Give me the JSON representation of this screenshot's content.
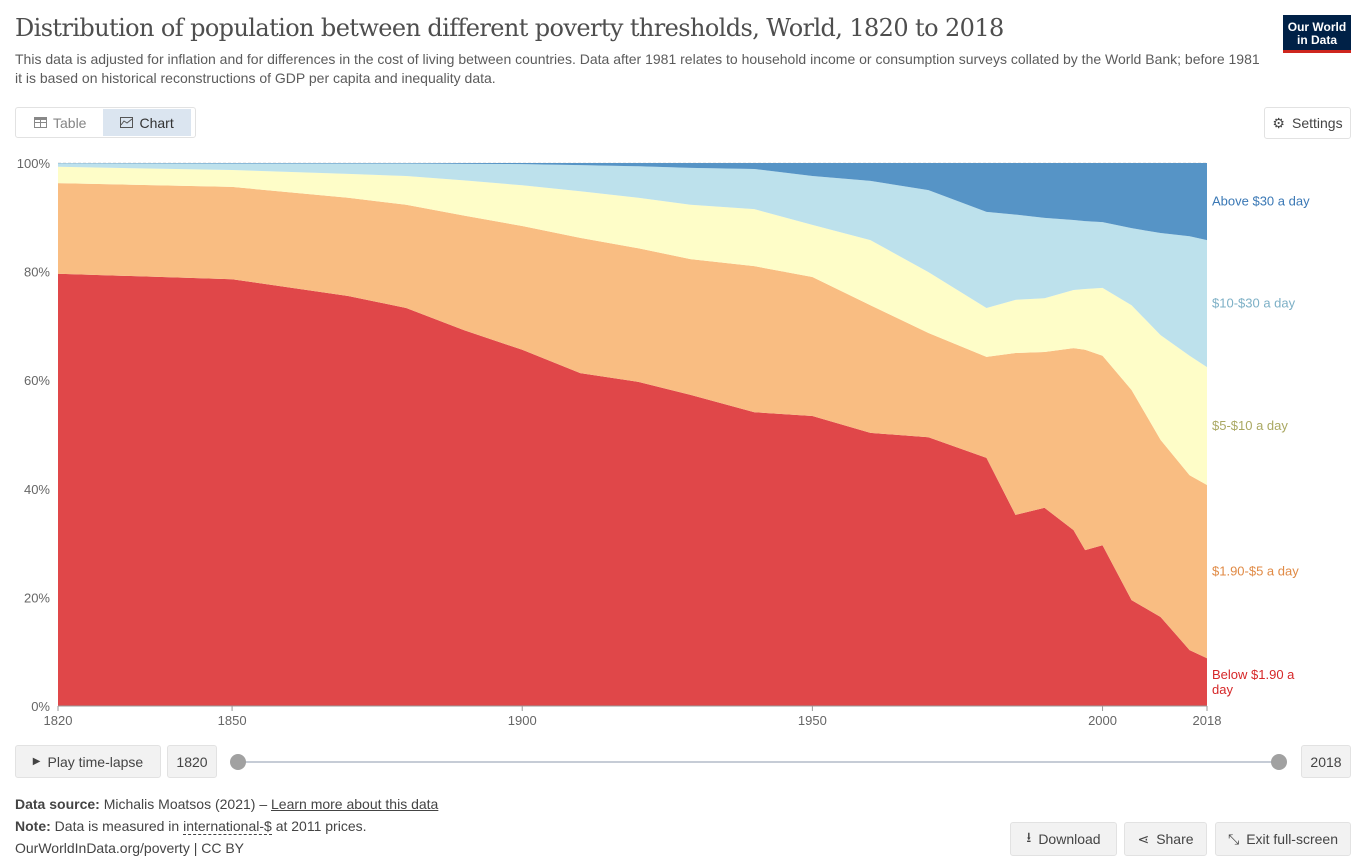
{
  "header": {
    "title": "Distribution of population between different poverty thresholds, World, 1820 to 2018",
    "subtitle": "This data is adjusted for inflation and for differences in the cost of living between countries. Data after 1981 relates to household income or consumption surveys collated by the World Bank; before 1981 it is based on historical reconstructions of GDP per capita and inequality data.",
    "logo_line1": "Our World",
    "logo_line2": "in Data"
  },
  "tabs": [
    {
      "label": "Table",
      "icon": "table-icon"
    },
    {
      "label": "Chart",
      "icon": "chart-icon",
      "active": true
    }
  ],
  "settings_label": "Settings",
  "chart_data": {
    "type": "area",
    "stacked": true,
    "title": "Distribution of population between different poverty thresholds, World, 1820 to 2018",
    "xlabel": "",
    "ylabel": "",
    "xlim": [
      1820,
      2018
    ],
    "ylim": [
      0,
      100
    ],
    "y_ticks": [
      "0%",
      "20%",
      "40%",
      "60%",
      "80%",
      "100%"
    ],
    "x_ticks": [
      "1820",
      "1850",
      "1900",
      "1950",
      "2000",
      "2018"
    ],
    "grid": true,
    "legend_placement": "right",
    "x": [
      1820,
      1850,
      1870,
      1880,
      1890,
      1900,
      1910,
      1920,
      1929,
      1940,
      1950,
      1960,
      1970,
      1980,
      1985,
      1990,
      1995,
      1997,
      2000,
      2005,
      2010,
      2015,
      2018
    ],
    "series": [
      {
        "name": "Below $1.90 a day",
        "color": "#e04749",
        "label_color": "#d62728",
        "values": [
          79.6,
          78.6,
          75.5,
          73.3,
          69.2,
          65.6,
          61.3,
          59.7,
          57.3,
          54.1,
          53.4,
          50.3,
          49.5,
          45.7,
          35.2,
          36.5,
          32.4,
          28.7,
          29.6,
          19.5,
          16.4,
          10.3,
          8.8
        ]
      },
      {
        "name": "$1.90-$5 a day",
        "color": "#f9bd82",
        "label_color": "#e08a45",
        "values": [
          16.7,
          17.0,
          18.1,
          19.0,
          21.1,
          22.8,
          24.9,
          24.6,
          25.0,
          26.9,
          25.6,
          23.5,
          19.2,
          18.6,
          29.8,
          28.7,
          33.5,
          36.9,
          34.9,
          38.7,
          32.6,
          32.2,
          31.9
        ]
      },
      {
        "name": "$5-$10 a day",
        "color": "#fefdc8",
        "label_color": "#aaa862",
        "values": [
          3.0,
          3.1,
          4.4,
          5.3,
          6.5,
          7.5,
          8.6,
          9.3,
          10.0,
          10.5,
          9.6,
          12.0,
          11.2,
          9.0,
          9.8,
          9.9,
          10.7,
          11.2,
          12.5,
          15.6,
          19.3,
          22.0,
          21.7
        ]
      },
      {
        "name": "$10-$30 a day",
        "color": "#bde1ec",
        "label_color": "#7db0c6",
        "values": [
          0.65,
          1.2,
          1.9,
          2.3,
          3.05,
          3.9,
          4.8,
          5.8,
          6.8,
          7.4,
          9.0,
          10.9,
          15.1,
          17.7,
          15.7,
          14.8,
          12.9,
          12.5,
          12.1,
          14.2,
          18.8,
          22.0,
          23.4
        ]
      },
      {
        "name": "Above $30 a day",
        "color": "#5694c6",
        "label_color": "#3a78b5",
        "values": [
          0.05,
          0.1,
          0.1,
          0.1,
          0.15,
          0.2,
          0.4,
          0.6,
          0.9,
          1.1,
          2.4,
          3.3,
          5.0,
          9.0,
          9.5,
          10.1,
          10.5,
          10.7,
          10.9,
          12.0,
          12.9,
          13.5,
          14.2
        ]
      }
    ]
  },
  "timeline": {
    "play_label": "Play time-lapse",
    "start": "1820",
    "end": "2018"
  },
  "footer": {
    "source_label": "Data source:",
    "source_text": "Michalis Moatsos (2021) – ",
    "source_link": "Learn more about this data",
    "note_label": "Note:",
    "note_text1": "Data is measured in ",
    "note_link": "international-$",
    "note_text2": " at 2011 prices.",
    "url": "OurWorldInData.org/poverty | CC BY"
  },
  "actions": {
    "download": "Download",
    "share": "Share",
    "exit": "Exit full-screen"
  }
}
